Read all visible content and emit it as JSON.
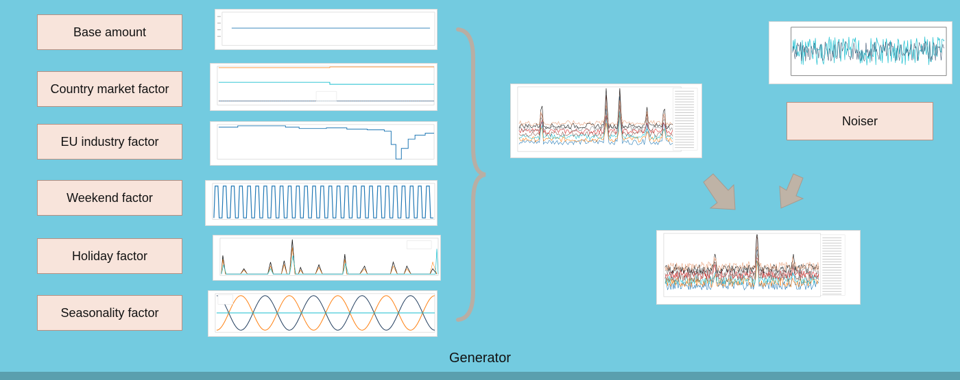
{
  "factors": [
    {
      "label": "Base amount",
      "chart_type": "constant"
    },
    {
      "label": "Country market factor",
      "chart_type": "steps-lines"
    },
    {
      "label": "EU industry factor",
      "chart_type": "step-dip"
    },
    {
      "label": "Weekend factor",
      "chart_type": "square-wave"
    },
    {
      "label": "Holiday factor",
      "chart_type": "spikes"
    },
    {
      "label": "Seasonality factor",
      "chart_type": "sinusoids"
    }
  ],
  "noiser": {
    "label": "Noiser"
  },
  "generator": {
    "label": "Generator"
  },
  "colors": {
    "background": "#73cbe0",
    "box_fill": "#f8e4db",
    "box_border": "#b98f80",
    "arrow": "#bfb3a6",
    "brace": "#b8aea4",
    "series_blue": "#1f77b4",
    "series_orange": "#ff7f0e",
    "series_teal": "#17becf"
  },
  "icons": {
    "brace": "curly-brace-icon",
    "arrow": "down-arrow-icon"
  }
}
